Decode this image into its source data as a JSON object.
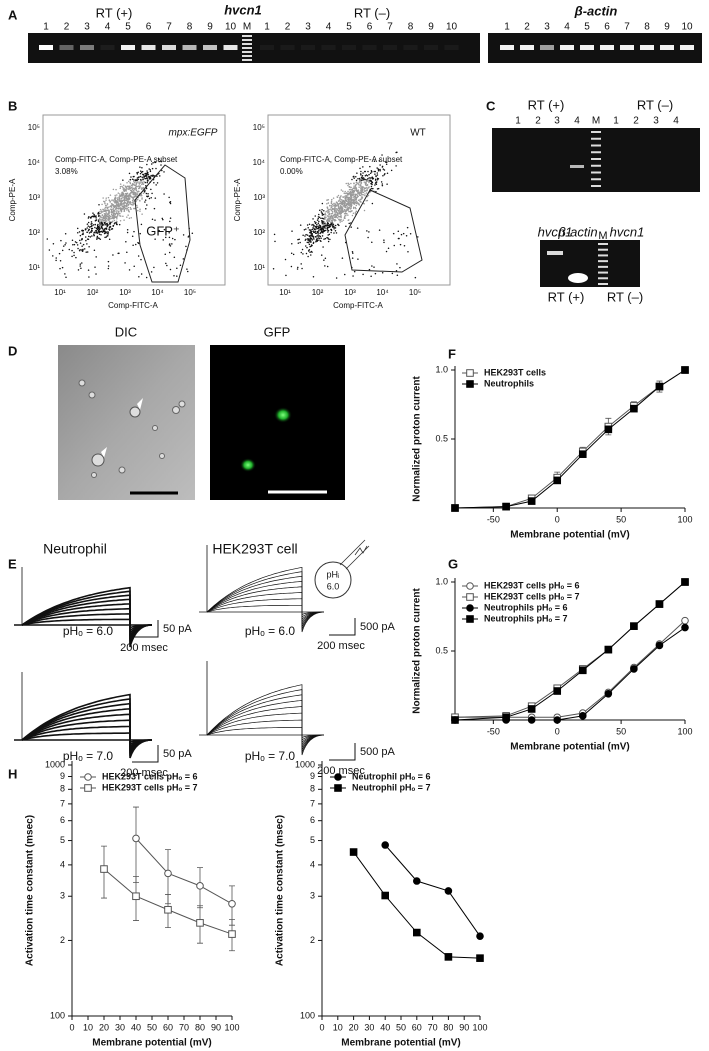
{
  "panel_labels": [
    "A",
    "B",
    "C",
    "D",
    "E",
    "F",
    "G",
    "H"
  ],
  "panel_a": {
    "rt_plus": "RT (+)",
    "gene": "hvcn1",
    "rt_minus": "RT (–)",
    "control_gene": "β-actin",
    "lanes": [
      "1",
      "2",
      "3",
      "4",
      "5",
      "6",
      "7",
      "8",
      "9",
      "10"
    ],
    "marker": "M"
  },
  "panel_b": {
    "y_axis": "Comp-PE-A",
    "x_axis": "Comp-FITC-A",
    "ticks": [
      "10¹",
      "10²",
      "10³",
      "10⁴",
      "10⁵"
    ],
    "plots": [
      {
        "sample": "mpx:EGFP",
        "gate_label": "Comp-FITC-A, Comp-PE-A subset",
        "percent": "3.08%",
        "gate": "GFP⁺"
      },
      {
        "sample": "WT",
        "gate_label": "Comp-FITC-A, Comp-PE-A subset",
        "percent": "0.00%"
      }
    ]
  },
  "panel_c": {
    "rt_plus": "RT (+)",
    "rt_minus": "RT (–)",
    "lanes": [
      "1",
      "2",
      "3",
      "4"
    ],
    "marker": "M",
    "lower_lanes": [
      "hvcn1",
      "β-actin",
      "M",
      "hvcn1"
    ]
  },
  "panel_d": {
    "images": [
      "DIC",
      "GFP"
    ]
  },
  "panel_e": {
    "cells": [
      "Neutrophil",
      "HEK293T cell"
    ],
    "conditions": [
      "pHₒ = 6.0",
      "pHₒ = 7.0"
    ],
    "scale_current": [
      "50 pA",
      "500 pA"
    ],
    "scale_time": "200 msec",
    "pipette": [
      "pHᵢ",
      "6.0"
    ]
  },
  "chart_data": [
    {
      "type": "line",
      "x": [
        -80,
        -40,
        -20,
        0,
        20,
        40,
        60,
        80,
        100
      ],
      "xlim": [
        -80,
        100
      ],
      "xticks": [
        -50,
        0,
        50,
        100
      ],
      "ylim": [
        0,
        1
      ],
      "yticks": [
        0.5,
        {
          "value": 1,
          "label": "1.0"
        }
      ],
      "x_label": "Membrane potential (mV)",
      "y_label": "Normalized proton current",
      "legend": "upper-left",
      "series": [
        {
          "name": "HEK293T cells",
          "color": "#555555",
          "marker": "open-square",
          "values": [
            0,
            0.01,
            0.07,
            0.22,
            0.41,
            0.59,
            0.74,
            0.88,
            1
          ],
          "errors": [
            0,
            0.01,
            0.02,
            0.04,
            0.03,
            0.06,
            0.03,
            0.04,
            0
          ]
        },
        {
          "name": "Neutrophils",
          "color": "#000000",
          "marker": "filled-square",
          "values": [
            0,
            0.01,
            0.05,
            0.2,
            0.39,
            0.57,
            0.72,
            0.88,
            1
          ]
        }
      ]
    },
    {
      "type": "line",
      "x": [
        -80,
        -40,
        -20,
        0,
        20,
        40,
        60,
        80,
        100
      ],
      "xlim": [
        -80,
        100
      ],
      "xticks": [
        -50,
        0,
        50,
        100
      ],
      "ylim": [
        0,
        1
      ],
      "yticks": [
        0.5,
        {
          "value": 1,
          "label": "1.0"
        }
      ],
      "x_label": "Membrane potential (mV)",
      "y_label": "Normalized proton current",
      "legend": "upper-left",
      "series": [
        {
          "name": "HEK293T cells pHₒ = 6",
          "color": "#555555",
          "marker": "open-circle",
          "values": [
            0.02,
            0.02,
            0.02,
            0.02,
            0.05,
            0.2,
            0.38,
            0.55,
            0.72
          ]
        },
        {
          "name": "HEK293T cells pHₒ = 7",
          "color": "#555555",
          "marker": "open-square",
          "values": [
            0.02,
            0.03,
            0.1,
            0.23,
            0.37,
            0.51,
            0.68,
            0.84,
            1
          ]
        },
        {
          "name": "Neutrophils pHₒ = 6",
          "color": "#000000",
          "marker": "filled-circle",
          "values": [
            0,
            0,
            0,
            0,
            0.03,
            0.19,
            0.37,
            0.54,
            0.67
          ]
        },
        {
          "name": "Neutrophils pHₒ = 7",
          "color": "#000000",
          "marker": "filled-square",
          "values": [
            0,
            0.02,
            0.08,
            0.21,
            0.36,
            0.51,
            0.68,
            0.84,
            1
          ]
        }
      ]
    },
    {
      "type": "line",
      "x": [
        20,
        40,
        60,
        80,
        100
      ],
      "xlim": [
        0,
        100
      ],
      "xticks": [
        0,
        10,
        20,
        30,
        40,
        50,
        60,
        70,
        80,
        90,
        100
      ],
      "ylim": [
        100,
        1000
      ],
      "log_y": true,
      "yticks": [
        100,
        {
          "value": 200,
          "label": "2"
        },
        {
          "value": 300,
          "label": "3"
        },
        {
          "value": 400,
          "label": "4"
        },
        {
          "value": 500,
          "label": "5"
        },
        {
          "value": 600,
          "label": "6"
        },
        {
          "value": 700,
          "label": "7"
        },
        {
          "value": 800,
          "label": "8"
        },
        {
          "value": 900,
          "label": "9"
        },
        1000
      ],
      "x_label": "Membrane potential (mV)",
      "y_label": "Activation time constant (msec)",
      "legend": "upper-left",
      "series": [
        {
          "name": "HEK293T cells pHₒ = 6",
          "color": "#555555",
          "marker": "open-circle",
          "values": [
            null,
            510,
            370,
            330,
            280
          ],
          "errors": [
            null,
            170,
            90,
            60,
            50
          ]
        },
        {
          "name": "HEK293T cells pHₒ = 7",
          "color": "#555555",
          "marker": "open-square",
          "values": [
            385,
            300,
            265,
            235,
            212
          ],
          "errors": [
            90,
            60,
            40,
            40,
            30
          ]
        }
      ]
    },
    {
      "type": "line",
      "x": [
        20,
        40,
        60,
        80,
        100
      ],
      "xlim": [
        0,
        100
      ],
      "xticks": [
        0,
        10,
        20,
        30,
        40,
        50,
        60,
        70,
        80,
        90,
        100
      ],
      "ylim": [
        100,
        1000
      ],
      "log_y": true,
      "yticks": [
        100,
        {
          "value": 200,
          "label": "2"
        },
        {
          "value": 300,
          "label": "3"
        },
        {
          "value": 400,
          "label": "4"
        },
        {
          "value": 500,
          "label": "5"
        },
        {
          "value": 600,
          "label": "6"
        },
        {
          "value": 700,
          "label": "7"
        },
        {
          "value": 800,
          "label": "8"
        },
        {
          "value": 900,
          "label": "9"
        },
        1000
      ],
      "x_label": "Membrane potential (mV)",
      "y_label": "Activation time constant (msec)",
      "legend": "upper-left",
      "series": [
        {
          "name": "Neutrophil pHₒ = 6",
          "color": "#000000",
          "marker": "filled-circle",
          "values": [
            null,
            480,
            345,
            315,
            208
          ]
        },
        {
          "name": "Neutrophil pHₒ = 7",
          "color": "#000000",
          "marker": "filled-square",
          "values": [
            450,
            302,
            215,
            172,
            170
          ]
        }
      ]
    }
  ]
}
